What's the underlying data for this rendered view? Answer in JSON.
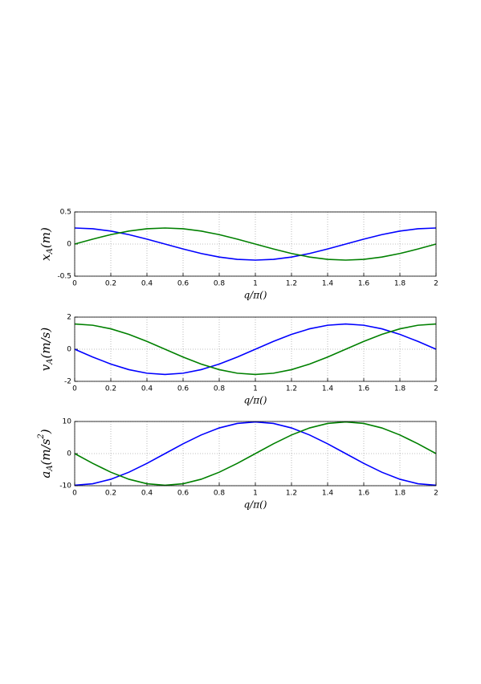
{
  "chart_data": [
    {
      "type": "line",
      "xlabel": "q/π()",
      "ylabel": "x_A(m)",
      "x": [
        0,
        0.1,
        0.2,
        0.3,
        0.4,
        0.5,
        0.6,
        0.7,
        0.8,
        0.9,
        1,
        1.1,
        1.2,
        1.3,
        1.4,
        1.5,
        1.6,
        1.7,
        1.8,
        1.9,
        2
      ],
      "series": [
        {
          "color": "#0000ff",
          "values": [
            0.25,
            0.238,
            0.202,
            0.147,
            0.077,
            0,
            -0.077,
            -0.147,
            -0.202,
            -0.238,
            -0.25,
            -0.238,
            -0.202,
            -0.147,
            -0.077,
            0,
            0.077,
            0.147,
            0.202,
            0.238,
            0.25
          ]
        },
        {
          "color": "#008000",
          "values": [
            0,
            0.077,
            0.147,
            0.202,
            0.238,
            0.25,
            0.238,
            0.202,
            0.147,
            0.077,
            0,
            -0.077,
            -0.147,
            -0.202,
            -0.238,
            -0.25,
            -0.238,
            -0.202,
            -0.147,
            -0.077,
            0
          ]
        }
      ],
      "xlim": [
        0,
        2
      ],
      "xticks": [
        0,
        0.2,
        0.4,
        0.6,
        0.8,
        1,
        1.2,
        1.4,
        1.6,
        1.8,
        2
      ],
      "ylim": [
        -0.5,
        0.5
      ],
      "yticks": [
        -0.5,
        0,
        0.5
      ],
      "grid": true
    },
    {
      "type": "line",
      "xlabel": "q/π()",
      "ylabel": "v_A(m/s)",
      "x": [
        0,
        0.1,
        0.2,
        0.3,
        0.4,
        0.5,
        0.6,
        0.7,
        0.8,
        0.9,
        1,
        1.1,
        1.2,
        1.3,
        1.4,
        1.5,
        1.6,
        1.7,
        1.8,
        1.9,
        2
      ],
      "series": [
        {
          "color": "#0000ff",
          "values": [
            0,
            -0.485,
            -0.923,
            -1.271,
            -1.494,
            -1.571,
            -1.494,
            -1.271,
            -0.923,
            -0.485,
            0,
            0.485,
            0.923,
            1.271,
            1.494,
            1.571,
            1.494,
            1.271,
            0.923,
            0.485,
            0
          ]
        },
        {
          "color": "#008000",
          "values": [
            1.571,
            1.494,
            1.271,
            0.923,
            0.485,
            0,
            -0.485,
            -0.923,
            -1.271,
            -1.494,
            -1.571,
            -1.494,
            -1.271,
            -0.923,
            -0.485,
            0,
            0.485,
            0.923,
            1.271,
            1.494,
            1.571
          ]
        }
      ],
      "xlim": [
        0,
        2
      ],
      "xticks": [
        0,
        0.2,
        0.4,
        0.6,
        0.8,
        1,
        1.2,
        1.4,
        1.6,
        1.8,
        2
      ],
      "ylim": [
        -2,
        2
      ],
      "yticks": [
        -2,
        0,
        2
      ],
      "grid": true
    },
    {
      "type": "line",
      "xlabel": "q/π()",
      "ylabel": "a_A(m/s^2)",
      "x": [
        0,
        0.1,
        0.2,
        0.3,
        0.4,
        0.5,
        0.6,
        0.7,
        0.8,
        0.9,
        1,
        1.1,
        1.2,
        1.3,
        1.4,
        1.5,
        1.6,
        1.7,
        1.8,
        1.9,
        2
      ],
      "series": [
        {
          "color": "#0000ff",
          "values": [
            -9.87,
            -9.387,
            -7.985,
            -5.801,
            -3.05,
            0,
            3.05,
            5.801,
            7.985,
            9.387,
            9.87,
            9.387,
            7.985,
            5.801,
            3.05,
            0,
            -3.05,
            -5.801,
            -7.985,
            -9.387,
            -9.87
          ]
        },
        {
          "color": "#008000",
          "values": [
            0,
            -3.05,
            -5.801,
            -7.985,
            -9.387,
            -9.87,
            -9.387,
            -7.985,
            -5.801,
            -3.05,
            0,
            3.05,
            5.801,
            7.985,
            9.387,
            9.87,
            9.387,
            7.985,
            5.801,
            3.05,
            0
          ]
        }
      ],
      "xlim": [
        0,
        2
      ],
      "xticks": [
        0,
        0.2,
        0.4,
        0.6,
        0.8,
        1,
        1.2,
        1.4,
        1.6,
        1.8,
        2
      ],
      "ylim": [
        -10,
        10
      ],
      "yticks": [
        -10,
        0,
        10
      ],
      "grid": true
    }
  ]
}
